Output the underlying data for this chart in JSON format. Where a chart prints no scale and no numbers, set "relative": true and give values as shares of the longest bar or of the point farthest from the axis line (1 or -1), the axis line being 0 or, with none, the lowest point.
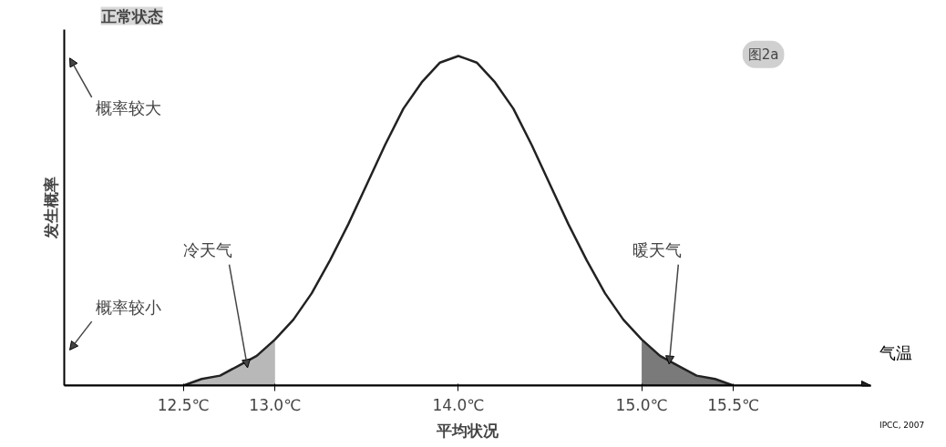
{
  "chart_data": {
    "type": "line",
    "title": "正常状态",
    "xlabel": "平均状况",
    "ylabel": "发生概率",
    "relative": true,
    "grid": false,
    "marker": "none",
    "line_style": "solid",
    "xlim": [
      11.85,
      16.25
    ],
    "xticks": [
      {
        "value": 12.5,
        "label": "12.5℃"
      },
      {
        "value": 13.0,
        "label": "13.0℃"
      },
      {
        "value": 14.0,
        "label": "14.0℃"
      },
      {
        "value": 15.0,
        "label": "15.0℃"
      },
      {
        "value": 15.5,
        "label": "15.5℃"
      }
    ],
    "series": [
      {
        "color": "#222222",
        "x": [
          12.5,
          12.6,
          12.7,
          12.8,
          12.9,
          13.0,
          13.1,
          13.2,
          13.3,
          13.4,
          13.5,
          13.6,
          13.7,
          13.8,
          13.9,
          14.0,
          14.1,
          14.2,
          14.3,
          14.4,
          14.5,
          14.6,
          14.7,
          14.8,
          14.9,
          15.0,
          15.1,
          15.2,
          15.3,
          15.4,
          15.5
        ],
        "values": [
          0,
          0.02,
          0.03,
          0.06,
          0.09,
          0.14,
          0.2,
          0.28,
          0.38,
          0.49,
          0.61,
          0.73,
          0.84,
          0.92,
          0.98,
          1,
          0.98,
          0.92,
          0.84,
          0.73,
          0.61,
          0.49,
          0.38,
          0.28,
          0.2,
          0.14,
          0.09,
          0.06,
          0.03,
          0.02,
          0
        ]
      },
      {
        "type": "area",
        "color": "#b8b8b8",
        "x": [
          12.5,
          12.6,
          12.7,
          12.8,
          12.9,
          13.0
        ],
        "values": [
          0,
          0.02,
          0.03,
          0.06,
          0.09,
          0.14
        ]
      },
      {
        "type": "area",
        "color": "#7a7a7a",
        "x": [
          15.0,
          15.1,
          15.2,
          15.3,
          15.4,
          15.5
        ],
        "values": [
          0.14,
          0.09,
          0.06,
          0.03,
          0.02,
          0
        ]
      }
    ],
    "annotations": [
      "概率较大",
      "概率较小",
      "图2a",
      "气温",
      "IPCC, 2007",
      "冷天气",
      "暖天气"
    ]
  }
}
